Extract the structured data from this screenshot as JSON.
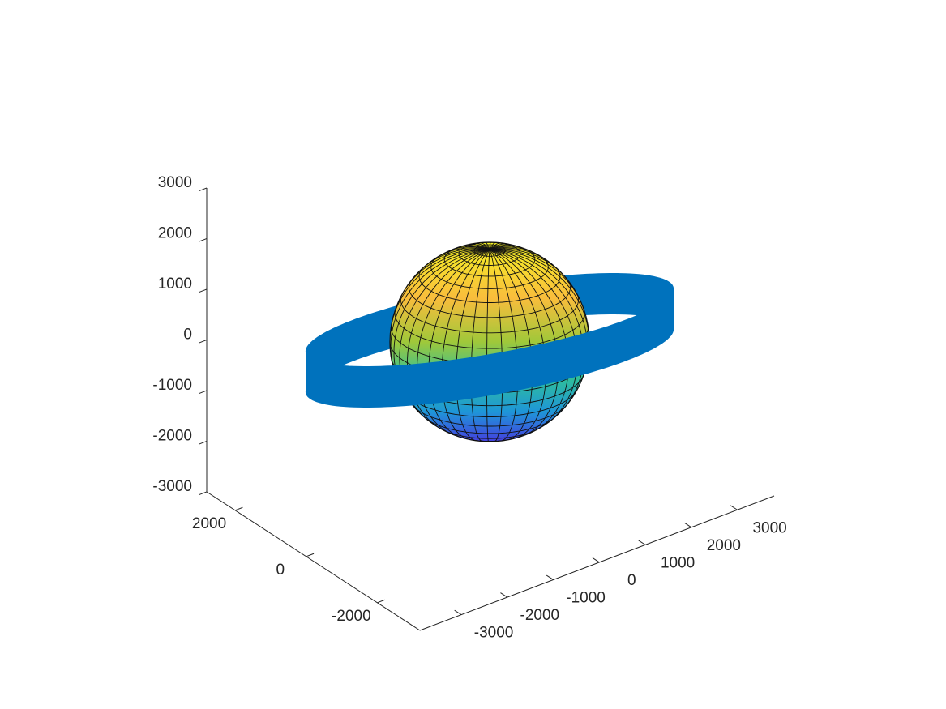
{
  "chart_data": {
    "type": "surface3d",
    "xlim": [
      -3900,
      3800
    ],
    "xticks": [
      -3000,
      -2000,
      -1000,
      0,
      1000,
      2000,
      3000
    ],
    "ylim": [
      -3200,
      2800
    ],
    "yticks": [
      -2000,
      0,
      2000
    ],
    "zlim": [
      -3000,
      3000
    ],
    "zticks": [
      -3000,
      -2000,
      -1000,
      0,
      1000,
      2000,
      3000
    ]
  }
}
